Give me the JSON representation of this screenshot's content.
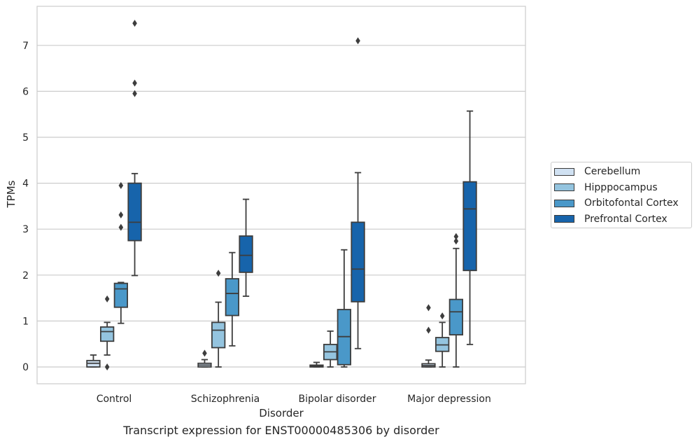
{
  "chart_data": {
    "type": "box",
    "title": "Transcript expression for ENST00000485306 by disorder",
    "xlabel": "Disorder",
    "ylabel": "TPMs",
    "ylim": [
      -0.37,
      7.9
    ],
    "yticks": [
      0,
      1,
      2,
      3,
      4,
      5,
      6,
      7
    ],
    "grid": "horizontal",
    "legend_position": "right",
    "categories": [
      "Control",
      "Schizophrenia",
      "Bipolar disorder",
      "Major depression"
    ],
    "series": [
      {
        "name": "Cerebellum",
        "color": "#d0e1f2",
        "boxes": [
          {
            "whisker_low": 0.0,
            "q1": 0.0,
            "median": 0.08,
            "q3": 0.14,
            "whisker_high": 0.26,
            "outliers": []
          },
          {
            "whisker_low": 0.0,
            "q1": 0.0,
            "median": 0.04,
            "q3": 0.08,
            "whisker_high": 0.16,
            "outliers": [
              0.3
            ]
          },
          {
            "whisker_low": 0.0,
            "q1": 0.0,
            "median": 0.02,
            "q3": 0.04,
            "whisker_high": 0.1,
            "outliers": []
          },
          {
            "whisker_low": 0.0,
            "q1": 0.0,
            "median": 0.03,
            "q3": 0.07,
            "whisker_high": 0.15,
            "outliers": [
              0.8,
              1.29
            ]
          }
        ]
      },
      {
        "name": "Hipppocampus",
        "color": "#94c4df",
        "boxes": [
          {
            "whisker_low": 0.26,
            "q1": 0.56,
            "median": 0.77,
            "q3": 0.87,
            "whisker_high": 0.97,
            "outliers": [
              1.48,
              0.0
            ]
          },
          {
            "whisker_low": 0.0,
            "q1": 0.42,
            "median": 0.8,
            "q3": 0.97,
            "whisker_high": 1.41,
            "outliers": [
              2.04
            ]
          },
          {
            "whisker_low": 0.0,
            "q1": 0.16,
            "median": 0.33,
            "q3": 0.49,
            "whisker_high": 0.78,
            "outliers": []
          },
          {
            "whisker_low": 0.0,
            "q1": 0.34,
            "median": 0.48,
            "q3": 0.64,
            "whisker_high": 0.97,
            "outliers": [
              1.11
            ]
          }
        ]
      },
      {
        "name": "Orbitofontal Cortex",
        "color": "#4a98c9",
        "boxes": [
          {
            "whisker_low": 0.95,
            "q1": 1.3,
            "median": 1.7,
            "q3": 1.82,
            "whisker_high": 1.84,
            "outliers": [
              3.04,
              3.31,
              3.95
            ]
          },
          {
            "whisker_low": 0.46,
            "q1": 1.12,
            "median": 1.6,
            "q3": 1.92,
            "whisker_high": 2.49,
            "outliers": []
          },
          {
            "whisker_low": 0.0,
            "q1": 0.05,
            "median": 0.66,
            "q3": 1.25,
            "whisker_high": 2.55,
            "outliers": []
          },
          {
            "whisker_low": 0.0,
            "q1": 0.7,
            "median": 1.2,
            "q3": 1.47,
            "whisker_high": 2.58,
            "outliers": [
              2.74,
              2.84
            ]
          }
        ]
      },
      {
        "name": "Prefrontal Cortex",
        "color": "#1764ab",
        "boxes": [
          {
            "whisker_low": 1.99,
            "q1": 2.75,
            "median": 3.15,
            "q3": 4.0,
            "whisker_high": 4.21,
            "outliers": [
              5.95,
              6.18,
              7.48
            ]
          },
          {
            "whisker_low": 1.54,
            "q1": 2.06,
            "median": 2.43,
            "q3": 2.85,
            "whisker_high": 3.65,
            "outliers": []
          },
          {
            "whisker_low": 0.4,
            "q1": 1.42,
            "median": 2.13,
            "q3": 3.15,
            "whisker_high": 4.23,
            "outliers": [
              7.1
            ]
          },
          {
            "whisker_low": 0.49,
            "q1": 2.1,
            "median": 3.44,
            "q3": 4.03,
            "whisker_high": 5.57,
            "outliers": []
          }
        ]
      }
    ]
  }
}
